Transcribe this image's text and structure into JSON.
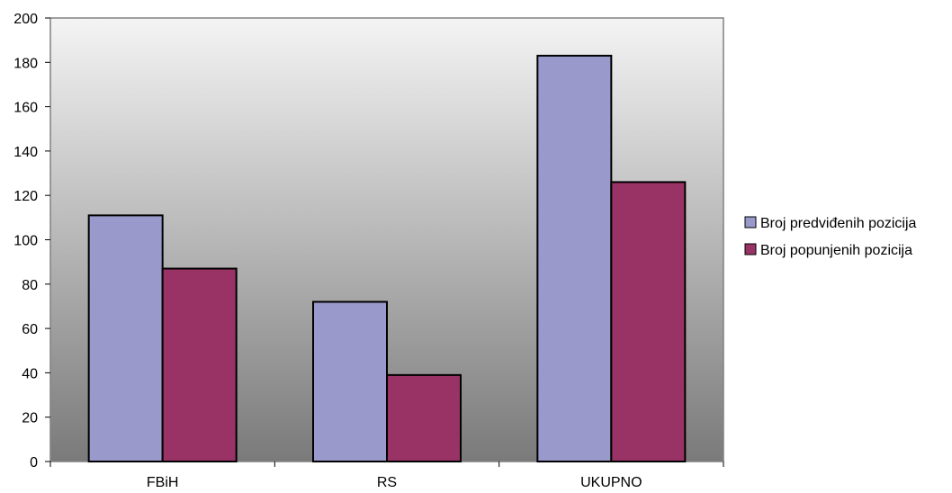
{
  "chart_data": {
    "type": "bar",
    "title": "",
    "xlabel": "",
    "ylabel": "",
    "categories": [
      "FBiH",
      "RS",
      "UKUPNO"
    ],
    "series": [
      {
        "name": "Broj predviđenih pozicija",
        "values": [
          111,
          72,
          183
        ]
      },
      {
        "name": "Broj popunjenih pozicija",
        "values": [
          87,
          39,
          126
        ]
      }
    ],
    "ylim": [
      0,
      200
    ],
    "yticks": [
      0,
      20,
      40,
      60,
      80,
      100,
      120,
      140,
      160,
      180,
      200
    ],
    "grid": false,
    "legend_position": "right",
    "colors": {
      "series": [
        "#9999cc",
        "#993366"
      ],
      "plot_gradient_top": "#f4f4f4",
      "plot_gradient_bottom": "#7a7a7a",
      "bar_stroke": "#000000"
    }
  }
}
